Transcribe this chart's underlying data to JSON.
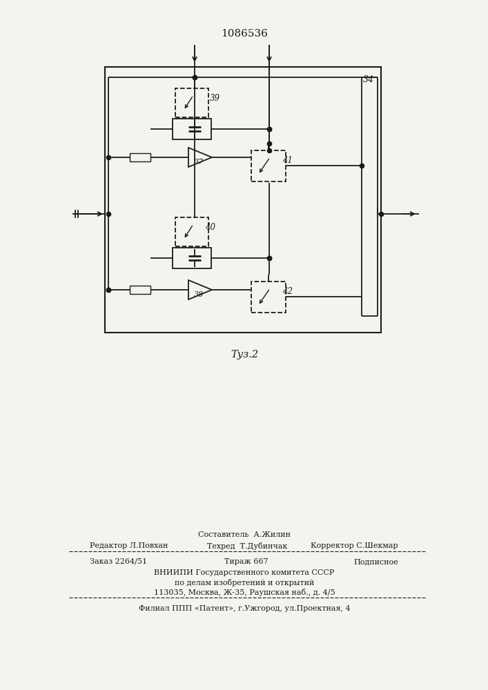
{
  "title_number": "1086536",
  "fig_label": "Τуз.2",
  "background_color": "#f5f3f0",
  "line_color": "#1a1a1a",
  "label_34": "34",
  "label_37": "37",
  "label_38": "38",
  "label_39": "39",
  "label_40": "40",
  "label_41": "41",
  "label_42": "42",
  "footer_line1_left": "Редактор Л.Повхан",
  "footer_line1_center": "Составитель  А.Жилин",
  "footer_line1_right": "Корректор С.Шекмар",
  "footer_line2_center": "Техред  Т.Дубинчак",
  "footer_line3_left": "Заказ 2264/51",
  "footer_line3_center": "Тираж 667",
  "footer_line3_right": "Подписное",
  "footer_line4": "ВНИИПИ Государственного комитета СССР",
  "footer_line5": "по делам изобретений и открытий",
  "footer_line6": "113035, Москва, Ж-35, Раушская наб., д. 4/5",
  "footer_line7": "Филиал ППП «Патент», г.Ужгород, ул.Проектная, 4"
}
